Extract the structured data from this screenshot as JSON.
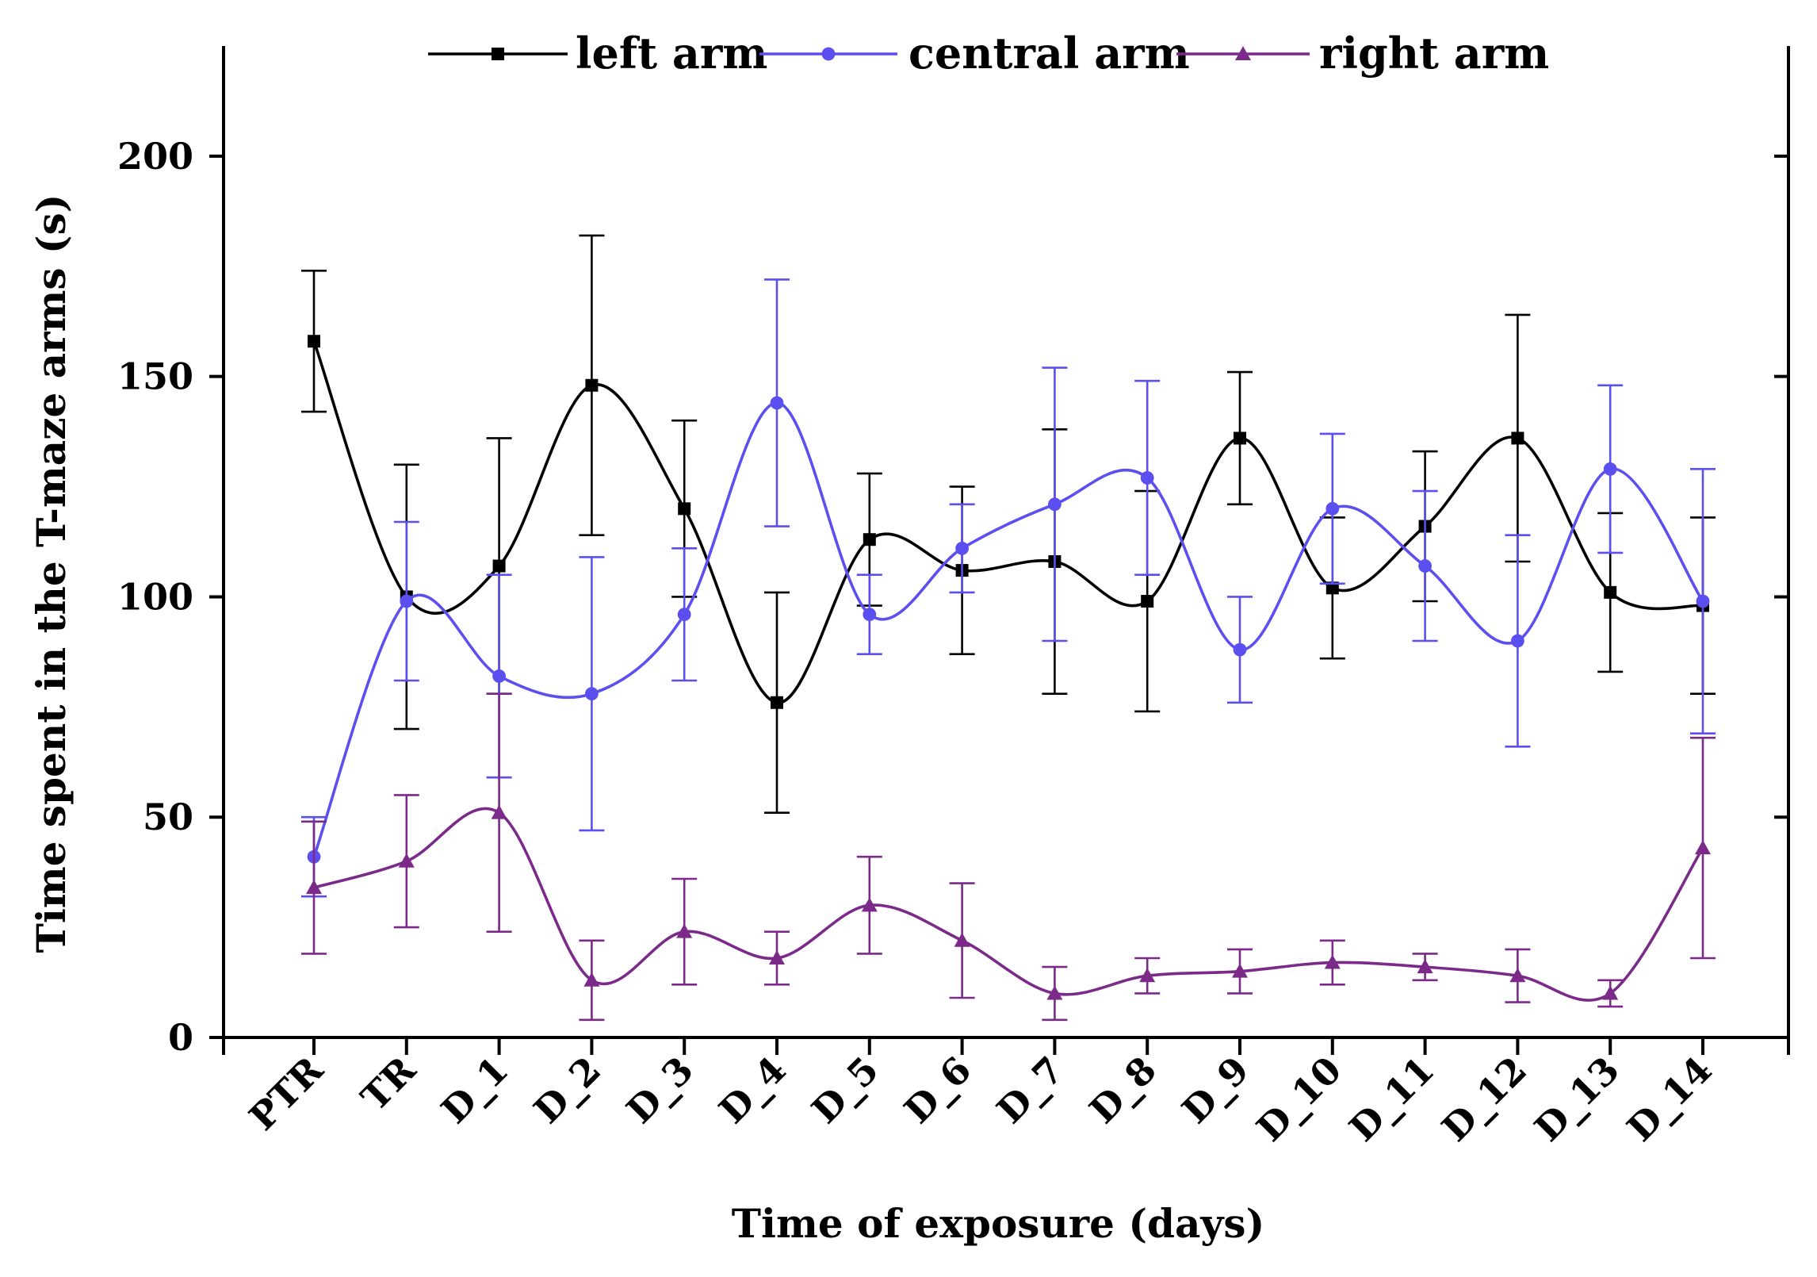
{
  "chart_data": {
    "type": "line",
    "title": "",
    "xlabel": "Time of exposure (days)",
    "ylabel": "Time spent in the T-maze arms (s)",
    "ylim": [
      0,
      225
    ],
    "yticks": [
      0,
      50,
      100,
      150,
      200
    ],
    "ytick_labels": [
      "0",
      "50",
      "100",
      "150",
      "200"
    ],
    "categories": [
      "PTR",
      "TR",
      "D_1",
      "D_2",
      "D_3",
      "D_4",
      "D_5",
      "D_6",
      "D_7",
      "D_8",
      "D_9",
      "D_10",
      "D_11",
      "D_12",
      "D_13",
      "D_14"
    ],
    "legend_position": "top-center",
    "series": [
      {
        "name": "left arm",
        "color": "#000000",
        "marker": "square",
        "values": [
          158,
          100,
          107,
          148,
          120,
          76,
          113,
          106,
          108,
          99,
          136,
          102,
          116,
          136,
          101,
          98
        ],
        "errors": [
          16,
          30,
          29,
          34,
          20,
          25,
          15,
          19,
          30,
          25,
          15,
          16,
          17,
          28,
          18,
          20
        ]
      },
      {
        "name": "central arm",
        "color": "#5b4ff0",
        "marker": "circle",
        "values": [
          41,
          99,
          82,
          78,
          96,
          144,
          96,
          111,
          121,
          127,
          88,
          120,
          107,
          90,
          129,
          99
        ],
        "errors": [
          9,
          18,
          23,
          31,
          15,
          28,
          9,
          10,
          31,
          22,
          12,
          17,
          17,
          24,
          19,
          30
        ]
      },
      {
        "name": "right arm",
        "color": "#7b2a8a",
        "marker": "triangle",
        "values": [
          34,
          40,
          51,
          13,
          24,
          18,
          30,
          22,
          10,
          14,
          15,
          17,
          16,
          14,
          10,
          43
        ],
        "errors": [
          15,
          15,
          27,
          9,
          12,
          6,
          11,
          13,
          6,
          4,
          5,
          5,
          3,
          6,
          3,
          25
        ]
      }
    ]
  }
}
